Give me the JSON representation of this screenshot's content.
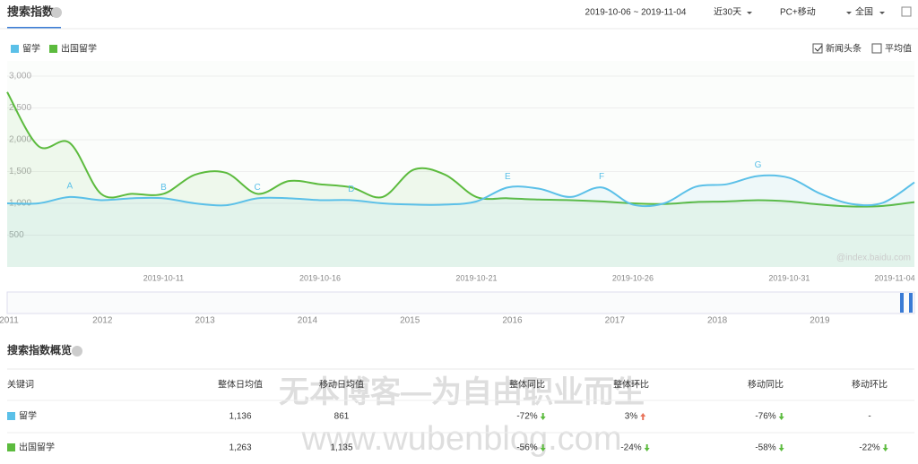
{
  "header": {
    "title": "搜索指数",
    "date_range": "2019-10-06 ~ 2019-11-04",
    "period": "近30天",
    "device": "PC+移动",
    "region": "全国"
  },
  "options": {
    "news": "新闻头条",
    "news_checked": true,
    "average": "平均值",
    "average_checked": false
  },
  "chart_data": {
    "type": "line",
    "x": [
      null,
      null,
      null,
      null,
      null,
      "2019-10-11",
      null,
      null,
      null,
      null,
      "2019-10-16",
      null,
      null,
      null,
      null,
      "2019-10-21",
      null,
      null,
      null,
      null,
      "2019-10-26",
      null,
      null,
      null,
      null,
      "2019-10-31",
      null,
      null,
      null,
      "2019-11-04"
    ],
    "series": [
      {
        "name": "留学",
        "color": "#5bc0e8",
        "values": [
          1000,
          1000,
          1100,
          1050,
          1080,
          1080,
          1000,
          970,
          1080,
          1080,
          1050,
          1050,
          1000,
          980,
          980,
          1030,
          1250,
          1230,
          1100,
          1250,
          980,
          1000,
          1260,
          1300,
          1430,
          1400,
          1150,
          990,
          1010,
          1330
        ]
      },
      {
        "name": "出国留学",
        "color": "#5cbb3e",
        "values": [
          2750,
          1900,
          1950,
          1150,
          1150,
          1150,
          1450,
          1480,
          1150,
          1350,
          1300,
          1250,
          1100,
          1530,
          1450,
          1100,
          1080,
          1060,
          1050,
          1030,
          1000,
          990,
          1020,
          1030,
          1050,
          1030,
          980,
          950,
          960,
          1020
        ]
      }
    ],
    "annotations": [
      "A",
      "B",
      "C",
      "D",
      "E",
      "F",
      "G"
    ],
    "ylim": [
      0,
      3000
    ],
    "yticks": [
      500,
      {
        "value": 1000,
        "label": "1,000"
      },
      {
        "value": 1500,
        "label": "1,500"
      },
      {
        "value": 2000,
        "label": "2,000"
      },
      {
        "value": 2500,
        "label": "2,500"
      },
      {
        "value": 3000,
        "label": "3,000"
      }
    ],
    "grid": true,
    "watermark": "@index.baidu.com"
  },
  "timeline": [
    "2011",
    "2012",
    "2013",
    "2014",
    "2015",
    "2016",
    "2017",
    "2018",
    "2019"
  ],
  "overview_title": "搜索指数概览",
  "table": {
    "headers": [
      "关键词",
      "整体日均值",
      "移动日均值",
      "整体同比",
      "整体环比",
      "移动同比",
      "移动环比"
    ],
    "rows": [
      [
        "留学",
        "1,136",
        "861",
        "-72%",
        "3%",
        "-76%",
        "-"
      ],
      [
        "出国留学",
        "1,263",
        "1,135",
        "-56%",
        "-24%",
        "-58%",
        "-22%"
      ]
    ]
  },
  "watermark": {
    "line1": "无本博客—为自由职业而生",
    "line2": "www.wubenblog.com"
  }
}
